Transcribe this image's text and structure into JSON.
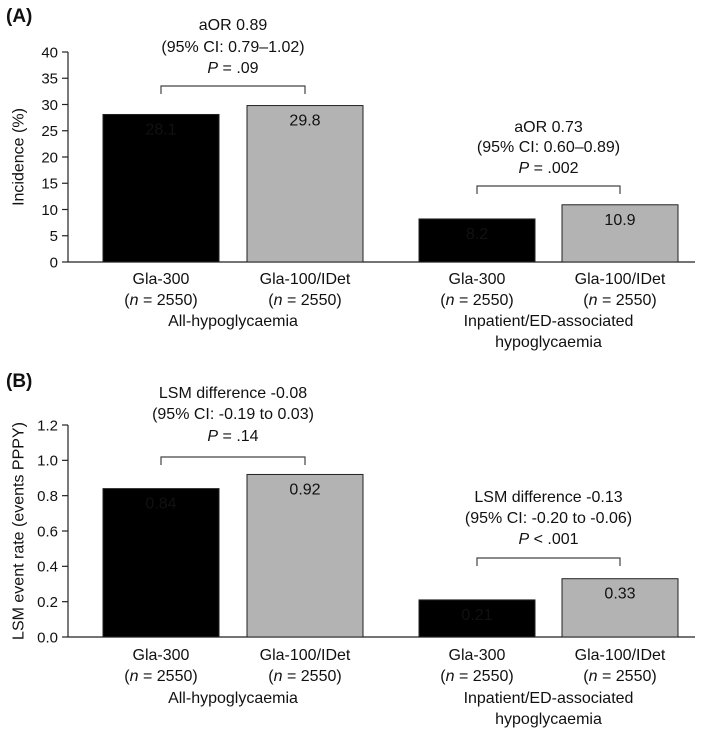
{
  "chart_data": [
    {
      "panel_label": "(A)",
      "type": "bar",
      "ylabel": "Incidence (%)",
      "ylim": [
        0,
        40
      ],
      "yticks": [
        "0",
        "5",
        "10",
        "15",
        "20",
        "25",
        "30",
        "35",
        "40"
      ],
      "yticks_values": [
        0,
        5,
        10,
        15,
        20,
        25,
        30,
        35,
        40
      ],
      "groups": [
        {
          "name": "All-hypoglycaemia",
          "name_lines": [
            "All-hypoglycaemia"
          ],
          "bars": [
            {
              "label": "Gla-300",
              "n_prefix": "(",
              "n_var": "n",
              "n_value": " = 2550)",
              "value": 28.1,
              "value_label": "28.1",
              "color": "#000000",
              "text_color": "#ffffff"
            },
            {
              "label": "Gla-100/IDet",
              "n_prefix": "(",
              "n_var": "n",
              "n_value": " = 2550)",
              "value": 29.8,
              "value_label": "29.8",
              "color": "#b3b3b3",
              "text_color": "#111111"
            }
          ],
          "annotation": {
            "line1": "aOR 0.89",
            "line2": "(95% CI: 0.79–1.02)",
            "p_var": "P",
            "p_text": " = .09"
          }
        },
        {
          "name": "Inpatient/ED-associated hypoglycaemia",
          "name_lines": [
            "Inpatient/ED-associated",
            "hypoglycaemia"
          ],
          "bars": [
            {
              "label": "Gla-300",
              "n_prefix": "(",
              "n_var": "n",
              "n_value": " = 2550)",
              "value": 8.2,
              "value_label": "8.2",
              "color": "#000000",
              "text_color": "#ffffff"
            },
            {
              "label": "Gla-100/IDet",
              "n_prefix": "(",
              "n_var": "n",
              "n_value": " = 2550)",
              "value": 10.9,
              "value_label": "10.9",
              "color": "#b3b3b3",
              "text_color": "#111111"
            }
          ],
          "annotation": {
            "line1": "aOR 0.73",
            "line2": "(95% CI: 0.60–0.89)",
            "p_var": "P",
            "p_text": " = .002"
          }
        }
      ]
    },
    {
      "panel_label": "(B)",
      "type": "bar",
      "ylabel": "LSM event rate (events PPPY)",
      "ylim": [
        0,
        1.2
      ],
      "yticks": [
        "0.0",
        "0.2",
        "0.4",
        "0.6",
        "0.8",
        "1.0",
        "1.2"
      ],
      "yticks_values": [
        0,
        0.2,
        0.4,
        0.6,
        0.8,
        1.0,
        1.2
      ],
      "groups": [
        {
          "name": "All-hypoglycaemia",
          "name_lines": [
            "All-hypoglycaemia"
          ],
          "bars": [
            {
              "label": "Gla-300",
              "n_prefix": "(",
              "n_var": "n",
              "n_value": " = 2550)",
              "value": 0.84,
              "value_label": "0.84",
              "color": "#000000",
              "text_color": "#ffffff"
            },
            {
              "label": "Gla-100/IDet",
              "n_prefix": "(",
              "n_var": "n",
              "n_value": " = 2550)",
              "value": 0.92,
              "value_label": "0.92",
              "color": "#b3b3b3",
              "text_color": "#111111"
            }
          ],
          "annotation": {
            "line1": "LSM difference -0.08",
            "line2": "(95% CI: -0.19 to 0.03)",
            "p_var": "P",
            "p_text": " = .14"
          }
        },
        {
          "name": "Inpatient/ED-associated hypoglycaemia",
          "name_lines": [
            "Inpatient/ED-associated",
            "hypoglycaemia"
          ],
          "bars": [
            {
              "label": "Gla-300",
              "n_prefix": "(",
              "n_var": "n",
              "n_value": " = 2550)",
              "value": 0.21,
              "value_label": "0.21",
              "color": "#000000",
              "text_color": "#ffffff"
            },
            {
              "label": "Gla-100/IDet",
              "n_prefix": "(",
              "n_var": "n",
              "n_value": " = 2550)",
              "value": 0.33,
              "value_label": "0.33",
              "color": "#b3b3b3",
              "text_color": "#111111"
            }
          ],
          "annotation": {
            "line1": "LSM difference -0.13",
            "line2": "(95% CI: -0.20 to -0.06)",
            "p_var": "P",
            "p_text": " < .001"
          }
        }
      ]
    }
  ]
}
